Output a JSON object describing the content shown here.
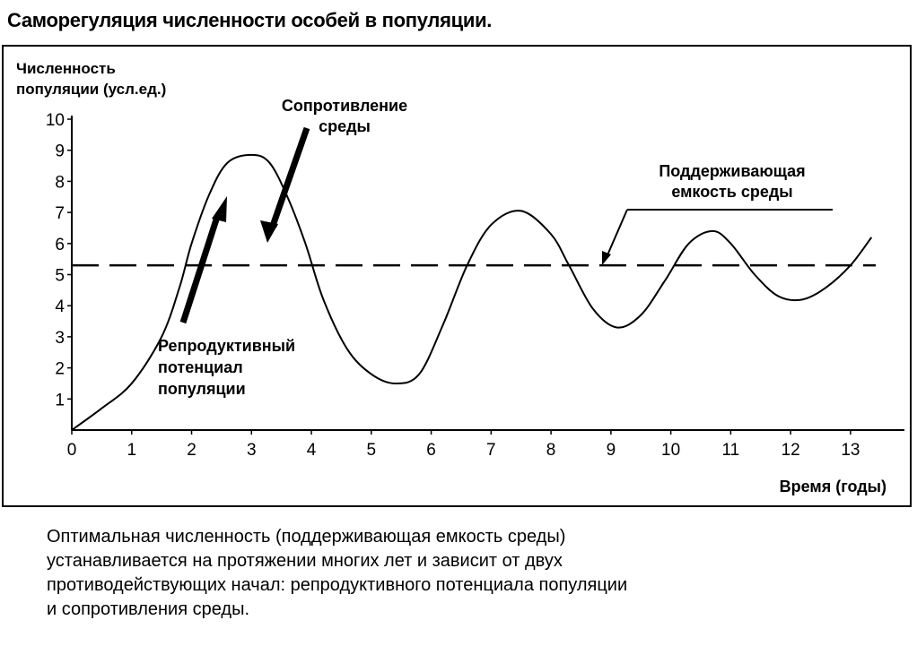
{
  "title": "Саморегуляция численности особей в популяции.",
  "caption_lines": [
    "Оптимальная численность (поддерживающая емкость среды)",
    "устанавливается на протяжении многих лет и зависит от двух",
    "противодействующих начал: репродуктивного потенциала популяции",
    "и сопротивления среды."
  ],
  "chart_data": {
    "type": "line",
    "ylabel_lines": [
      "Численность",
      "популяции (усл.ед.)"
    ],
    "xlabel": "Время (годы)",
    "xlim": [
      0,
      13.9
    ],
    "ylim": [
      0,
      10
    ],
    "x_ticks": [
      0,
      1,
      2,
      3,
      4,
      5,
      6,
      7,
      8,
      9,
      10,
      11,
      12,
      13
    ],
    "y_ticks": [
      1,
      2,
      3,
      4,
      5,
      6,
      7,
      8,
      9,
      10
    ],
    "grid": false,
    "legend": "none",
    "series": [
      {
        "x": [
          0,
          0.5,
          1.0,
          1.5,
          1.8,
          2.0,
          2.3,
          2.6,
          3.0,
          3.3,
          3.6,
          3.9,
          4.2,
          4.6,
          5.0,
          5.4,
          5.8,
          6.2,
          6.6,
          7.0,
          7.5,
          8.0,
          8.3,
          8.7,
          9.1,
          9.5,
          9.9,
          10.3,
          10.7,
          11.0,
          11.4,
          11.8,
          12.2,
          12.6,
          13.0,
          13.35
        ],
        "values": [
          0.0,
          0.7,
          1.5,
          3.0,
          4.6,
          6.0,
          7.6,
          8.6,
          8.85,
          8.6,
          7.5,
          6.0,
          4.2,
          2.6,
          1.8,
          1.5,
          1.8,
          3.4,
          5.3,
          6.6,
          7.05,
          6.3,
          5.3,
          3.9,
          3.3,
          3.7,
          4.8,
          6.0,
          6.4,
          6.0,
          5.0,
          4.3,
          4.2,
          4.6,
          5.3,
          6.2
        ]
      }
    ],
    "carrying_capacity": 5.3,
    "annotations": {
      "environment_resistance": [
        "Сопротивление",
        "среды"
      ],
      "carrying_capacity_label": [
        "Поддерживающая",
        "емкость среды"
      ],
      "reproductive_potential": [
        "Репродуктивный",
        "потенциал",
        "популяции"
      ]
    }
  }
}
